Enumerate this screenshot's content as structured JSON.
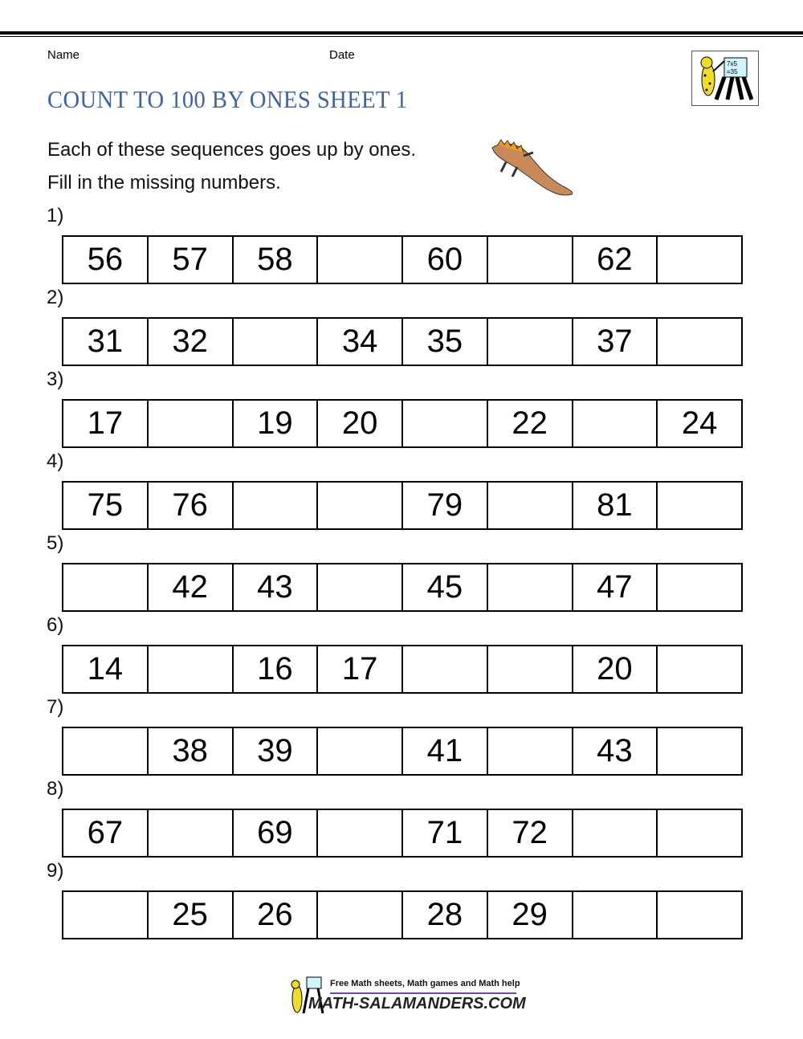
{
  "header": {
    "name_label": "Name",
    "date_label": "Date",
    "title": "COUNT TO 100 BY ONES SHEET 1",
    "logo_text": "7x5 =35"
  },
  "instructions": [
    "Each of these sequences goes up by ones.",
    "Fill in the missing numbers."
  ],
  "questions": [
    {
      "label": "1)",
      "cells": [
        "56",
        "57",
        "58",
        "",
        "60",
        "",
        "62",
        ""
      ]
    },
    {
      "label": "2)",
      "cells": [
        "31",
        "32",
        "",
        "34",
        "35",
        "",
        "37",
        ""
      ]
    },
    {
      "label": "3)",
      "cells": [
        "17",
        "",
        "19",
        "20",
        "",
        "22",
        "",
        "24"
      ]
    },
    {
      "label": "4)",
      "cells": [
        "75",
        "76",
        "",
        "",
        "79",
        "",
        "81",
        ""
      ]
    },
    {
      "label": "5)",
      "cells": [
        "",
        "42",
        "43",
        "",
        "45",
        "",
        "47",
        ""
      ]
    },
    {
      "label": "6)",
      "cells": [
        "14",
        "",
        "16",
        "17",
        "",
        "",
        "20",
        ""
      ]
    },
    {
      "label": "7)",
      "cells": [
        "",
        "38",
        "39",
        "",
        "41",
        "",
        "43",
        ""
      ]
    },
    {
      "label": "8)",
      "cells": [
        "67",
        "",
        "69",
        "",
        "71",
        "72",
        "",
        ""
      ]
    },
    {
      "label": "9)",
      "cells": [
        "",
        "25",
        "26",
        "",
        "28",
        "29",
        "",
        ""
      ]
    }
  ],
  "footer": {
    "tagline": "Free Math sheets, Math games and Math help",
    "site": "MATH-SALAMANDERS.COM"
  },
  "colors": {
    "title": "#3d64a0",
    "footer_line": "#7a3fb0"
  }
}
